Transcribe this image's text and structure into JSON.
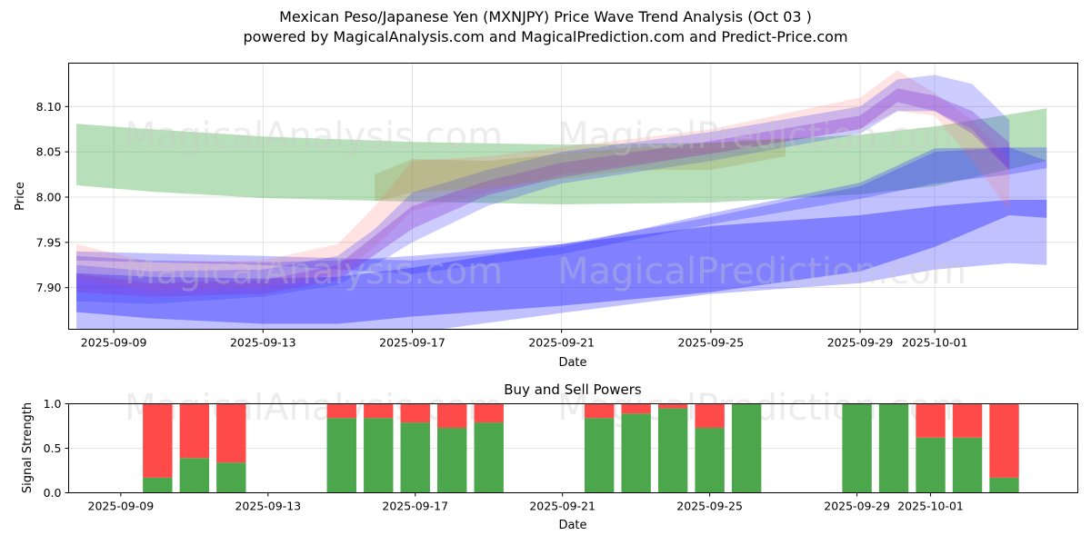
{
  "header": {
    "title": "Mexican Peso/Japanese Yen (MXNJPY) Price Wave Trend Analysis (Oct 03 )",
    "subtitle": "powered by MagicalAnalysis.com and MagicalPrediction.com and Predict-Price.com"
  },
  "watermarks": [
    "MagicalAnalysis.com",
    "MagicalPrediction.com"
  ],
  "colors": {
    "trend_channel": "#4caf50",
    "wave_blue": "#3333ff",
    "wave_red": "#ff6f6f",
    "buy": "#4ca64c",
    "sell": "#ff4a4a",
    "grid": "#dddddd"
  },
  "chart_data": [
    {
      "type": "area",
      "title": "",
      "xlabel": "Date",
      "ylabel": "Price",
      "ylim": [
        7.854,
        8.148
      ],
      "xlim": [
        "2025-09-07T19:00",
        "2025-10-04T20:00"
      ],
      "grid": true,
      "yticks": [
        7.9,
        7.95,
        8.0,
        8.05,
        8.1
      ],
      "ytick_labels": [
        "7.90",
        "7.95",
        "8.00",
        "8.05",
        "8.10"
      ],
      "xticks": [
        "2025-09-09",
        "2025-09-13",
        "2025-09-17",
        "2025-09-21",
        "2025-09-25",
        "2025-09-29",
        "2025-10-01"
      ],
      "series": [
        {
          "name": "trend-channel",
          "color": "green",
          "opacity": 0.4,
          "x": [
            "2025-09-08",
            "2025-09-10",
            "2025-09-13",
            "2025-09-17",
            "2025-09-21",
            "2025-09-25",
            "2025-09-29",
            "2025-10-01",
            "2025-10-04"
          ],
          "upper": [
            8.081,
            8.075,
            8.067,
            8.061,
            8.058,
            8.06,
            8.069,
            8.078,
            8.098
          ],
          "lower": [
            8.013,
            8.006,
            7.999,
            7.995,
            7.992,
            7.994,
            8.003,
            8.012,
            8.04
          ]
        },
        {
          "name": "lower-cone-outer",
          "color": "blue",
          "opacity": 0.3,
          "x": [
            "2025-09-08",
            "2025-09-10",
            "2025-09-13",
            "2025-09-15",
            "2025-09-17",
            "2025-09-21",
            "2025-09-25",
            "2025-09-29",
            "2025-10-01",
            "2025-10-03",
            "2025-10-04"
          ],
          "upper": [
            7.935,
            7.93,
            7.928,
            7.93,
            7.935,
            7.948,
            7.978,
            8.012,
            8.05,
            8.055,
            8.055
          ],
          "lower": [
            7.85,
            7.845,
            7.842,
            7.845,
            7.85,
            7.872,
            7.893,
            7.905,
            7.92,
            7.927,
            7.925
          ]
        },
        {
          "name": "lower-cone-inner",
          "color": "blue",
          "opacity": 0.45,
          "x": [
            "2025-09-08",
            "2025-09-10",
            "2025-09-13",
            "2025-09-15",
            "2025-09-17",
            "2025-09-21",
            "2025-09-25",
            "2025-09-29",
            "2025-10-01",
            "2025-10-03",
            "2025-10-04"
          ],
          "upper": [
            7.916,
            7.912,
            7.91,
            7.912,
            7.922,
            7.948,
            7.968,
            7.98,
            7.99,
            7.997,
            7.997
          ],
          "lower": [
            7.873,
            7.866,
            7.86,
            7.86,
            7.868,
            7.88,
            7.895,
            7.918,
            7.945,
            7.98,
            7.977
          ]
        },
        {
          "name": "upper-cone",
          "color": "blue",
          "opacity": 0.3,
          "x": [
            "2025-09-08",
            "2025-09-13",
            "2025-09-17",
            "2025-09-21",
            "2025-09-25",
            "2025-09-29",
            "2025-10-01",
            "2025-10-03",
            "2025-10-04"
          ],
          "upper": [
            7.94,
            7.935,
            7.93,
            7.945,
            7.982,
            8.016,
            8.054,
            8.055,
            8.04
          ],
          "lower": [
            7.93,
            7.925,
            7.915,
            7.937,
            7.97,
            7.998,
            8.015,
            8.025,
            8.032
          ]
        },
        {
          "name": "wave-bundle-red",
          "color": "red",
          "opacity": 0.2,
          "x": [
            "2025-09-08",
            "2025-09-10",
            "2025-09-13",
            "2025-09-15",
            "2025-09-16",
            "2025-09-17",
            "2025-09-19",
            "2025-09-21",
            "2025-09-25",
            "2025-09-29",
            "2025-09-30",
            "2025-10-01",
            "2025-10-02",
            "2025-10-03"
          ],
          "upper": [
            7.948,
            7.928,
            7.93,
            7.948,
            7.99,
            8.04,
            8.045,
            8.055,
            8.075,
            8.11,
            8.14,
            8.115,
            8.085,
            8.04
          ],
          "lower": [
            7.91,
            7.897,
            7.9,
            7.915,
            7.945,
            7.985,
            8.005,
            8.025,
            8.048,
            8.075,
            8.095,
            8.09,
            8.04,
            7.985
          ]
        },
        {
          "name": "wave-bundle-blue",
          "color": "blue",
          "opacity": 0.25,
          "x": [
            "2025-09-08",
            "2025-09-10",
            "2025-09-13",
            "2025-09-15",
            "2025-09-16",
            "2025-09-17",
            "2025-09-19",
            "2025-09-21",
            "2025-09-25",
            "2025-09-29",
            "2025-09-30",
            "2025-10-01",
            "2025-10-02",
            "2025-10-03"
          ],
          "upper": [
            7.925,
            7.918,
            7.92,
            7.935,
            7.965,
            8.005,
            8.03,
            8.05,
            8.072,
            8.1,
            8.13,
            8.135,
            8.125,
            8.085
          ],
          "lower": [
            7.885,
            7.882,
            7.89,
            7.903,
            7.925,
            7.95,
            7.99,
            8.015,
            8.04,
            8.07,
            8.095,
            8.095,
            8.075,
            8.03
          ]
        },
        {
          "name": "wave-bundle-purple-core",
          "color": "purple",
          "opacity": 0.35,
          "x": [
            "2025-09-08",
            "2025-09-10",
            "2025-09-13",
            "2025-09-15",
            "2025-09-17",
            "2025-09-19",
            "2025-09-21",
            "2025-09-25",
            "2025-09-29",
            "2025-09-30",
            "2025-10-01",
            "2025-10-02",
            "2025-10-03"
          ],
          "upper": [
            7.915,
            7.905,
            7.908,
            7.925,
            7.99,
            8.018,
            8.038,
            8.062,
            8.09,
            8.12,
            8.112,
            8.095,
            8.06
          ],
          "lower": [
            7.895,
            7.89,
            7.893,
            7.908,
            7.965,
            8.002,
            8.022,
            8.048,
            8.075,
            8.105,
            8.095,
            8.07,
            8.03
          ]
        },
        {
          "name": "wave-bundle-olive",
          "color": "olive",
          "opacity": 0.25,
          "x": [
            "2025-09-16",
            "2025-09-17",
            "2025-09-19",
            "2025-09-21",
            "2025-09-23",
            "2025-09-25",
            "2025-09-27"
          ],
          "upper": [
            8.025,
            8.042,
            8.04,
            8.048,
            8.055,
            8.06,
            8.065
          ],
          "lower": [
            7.995,
            8.005,
            8.01,
            8.02,
            8.03,
            8.03,
            8.045
          ]
        }
      ]
    },
    {
      "type": "bar",
      "title": "Buy and Sell Powers",
      "xlabel": "Date",
      "ylabel": "Signal Strength",
      "ylim": [
        0.0,
        1.0
      ],
      "yticks": [
        0.0,
        0.5,
        1.0
      ],
      "ytick_labels": [
        "0.0",
        "0.5",
        "1.0"
      ],
      "xticks": [
        "2025-09-09",
        "2025-09-13",
        "2025-09-17",
        "2025-09-21",
        "2025-09-25",
        "2025-09-29",
        "2025-10-01"
      ],
      "xlim": [
        "2025-09-07T14:00",
        "2025-10-05T00:00"
      ],
      "grid": true,
      "categories": [
        "2025-09-10",
        "2025-09-11",
        "2025-09-12",
        "2025-09-15",
        "2025-09-16",
        "2025-09-17",
        "2025-09-18",
        "2025-09-19",
        "2025-09-22",
        "2025-09-23",
        "2025-09-24",
        "2025-09-25",
        "2025-09-26",
        "2025-09-29",
        "2025-09-30",
        "2025-10-01",
        "2025-10-02",
        "2025-10-03"
      ],
      "series": [
        {
          "name": "Buy",
          "color": "green",
          "values": [
            0.17,
            0.39,
            0.34,
            0.84,
            0.84,
            0.79,
            0.73,
            0.79,
            0.84,
            0.89,
            0.95,
            0.73,
            1.0,
            1.0,
            1.0,
            0.62,
            0.62,
            0.17
          ]
        },
        {
          "name": "Sell",
          "color": "red",
          "values": [
            0.83,
            0.61,
            0.66,
            0.16,
            0.16,
            0.21,
            0.27,
            0.21,
            0.16,
            0.11,
            0.05,
            0.27,
            0.0,
            0.0,
            0.0,
            0.38,
            0.38,
            0.83
          ]
        }
      ]
    }
  ]
}
